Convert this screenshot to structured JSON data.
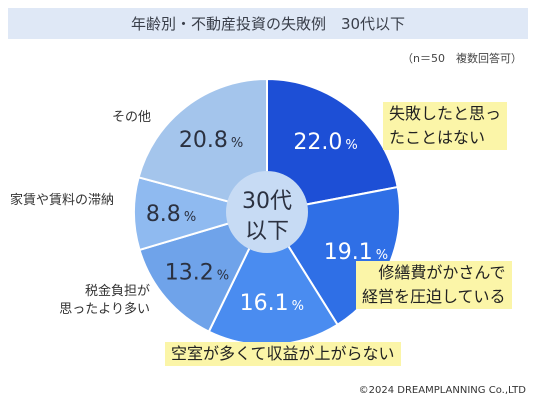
{
  "title": "年齢別・不動産投資の失敗例　30代以下",
  "note": "（n＝50　複数回答可）",
  "copyright": "©2024 DREAMPLANNING Co.,LTD",
  "center_label": [
    "30代",
    "以下"
  ],
  "chart_data": {
    "type": "pie",
    "title": "年齢別・不動産投資の失敗例　30代以下",
    "unit": "%",
    "categories": [
      "失敗したと思ったことはない",
      "修繕費がかさんで経営を圧迫している",
      "空室が多くて収益が上がらない",
      "税金負担が思ったより多い",
      "家賃や賃料の滞納",
      "その他"
    ],
    "values": [
      22.0,
      19.1,
      16.1,
      13.2,
      8.8,
      20.8
    ],
    "value_labels": [
      "22.0",
      "19.1",
      "16.1",
      "13.2",
      "8.8",
      "20.8"
    ],
    "colors": [
      "#1d4fd6",
      "#2f6fe6",
      "#4a8cf0",
      "#6fa3ea",
      "#8fbaf0",
      "#a4c5ec"
    ]
  },
  "labels": {
    "l0": [
      "失敗したと思っ",
      "たことはない"
    ],
    "l1": [
      "修繕費がかさんで",
      "経営を圧迫している"
    ],
    "l2": [
      "空室が多くて収益が上がらない"
    ],
    "l3": [
      "税金負担が",
      "思ったより多い"
    ],
    "l4": [
      "家賃や賃料の滞納"
    ],
    "l5": [
      "その他"
    ]
  }
}
